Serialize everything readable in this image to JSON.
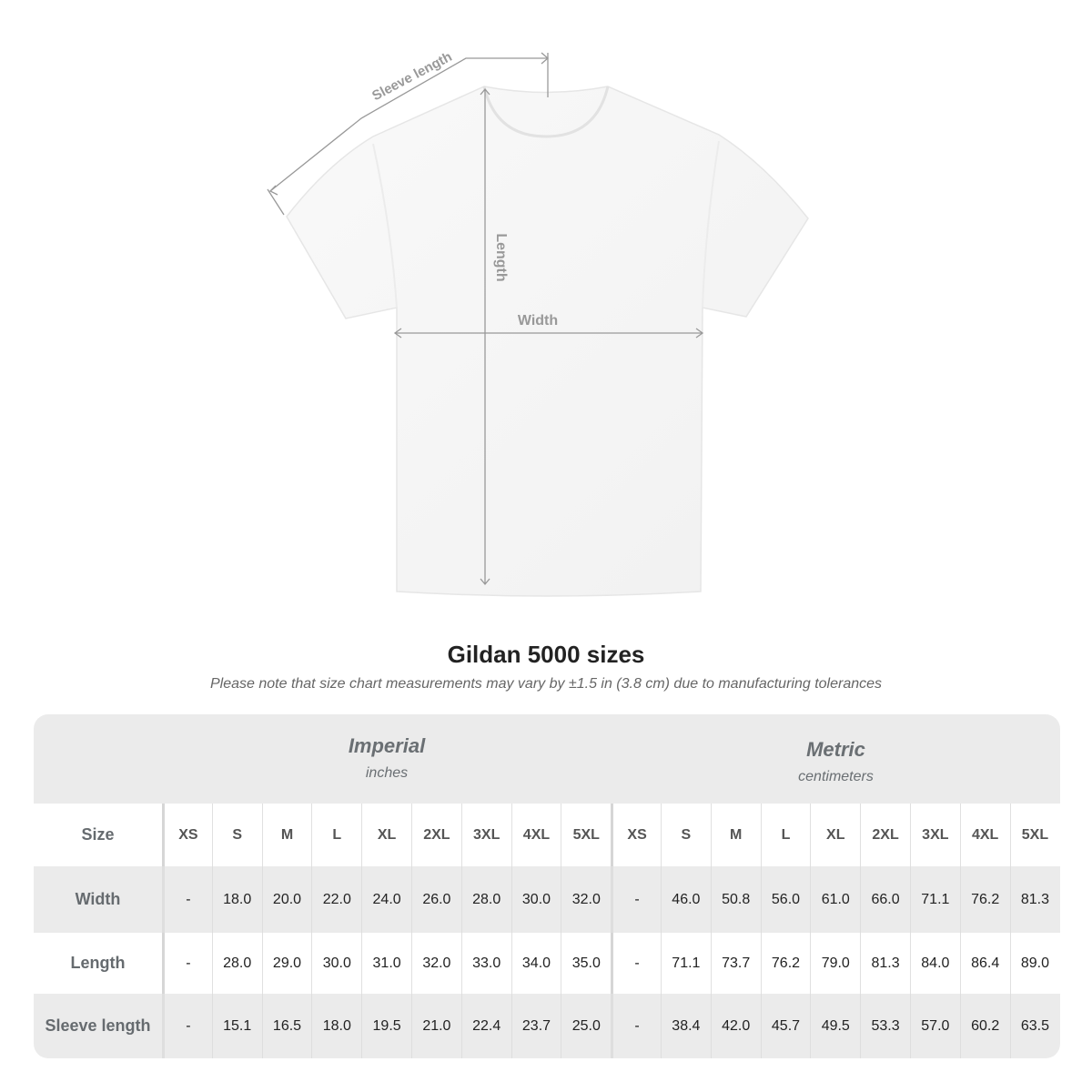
{
  "diagram": {
    "sleeve_label": "Sleeve length",
    "length_label": "Length",
    "width_label": "Width"
  },
  "title": "Gildan 5000 sizes",
  "note": "Please note that size chart measurements may vary by ±1.5 in (3.8 cm) due to manufacturing tolerances",
  "imperial": {
    "label": "Imperial",
    "unit": "inches"
  },
  "metric": {
    "label": "Metric",
    "unit": "centimeters"
  },
  "size_label": "Size",
  "sizes": [
    "XS",
    "S",
    "M",
    "L",
    "XL",
    "2XL",
    "3XL",
    "4XL",
    "5XL"
  ],
  "rows": [
    {
      "label": "Width",
      "imperial": [
        "-",
        "18.0",
        "20.0",
        "22.0",
        "24.0",
        "26.0",
        "28.0",
        "30.0",
        "32.0"
      ],
      "metric": [
        "-",
        "46.0",
        "50.8",
        "56.0",
        "61.0",
        "66.0",
        "71.1",
        "76.2",
        "81.3"
      ]
    },
    {
      "label": "Length",
      "imperial": [
        "-",
        "28.0",
        "29.0",
        "30.0",
        "31.0",
        "32.0",
        "33.0",
        "34.0",
        "35.0"
      ],
      "metric": [
        "-",
        "71.1",
        "73.7",
        "76.2",
        "79.0",
        "81.3",
        "84.0",
        "86.4",
        "89.0"
      ]
    },
    {
      "label": "Sleeve length",
      "imperial": [
        "-",
        "15.1",
        "16.5",
        "18.0",
        "19.5",
        "21.0",
        "22.4",
        "23.7",
        "25.0"
      ],
      "metric": [
        "-",
        "38.4",
        "42.0",
        "45.7",
        "49.5",
        "53.3",
        "57.0",
        "60.2",
        "63.5"
      ]
    }
  ]
}
